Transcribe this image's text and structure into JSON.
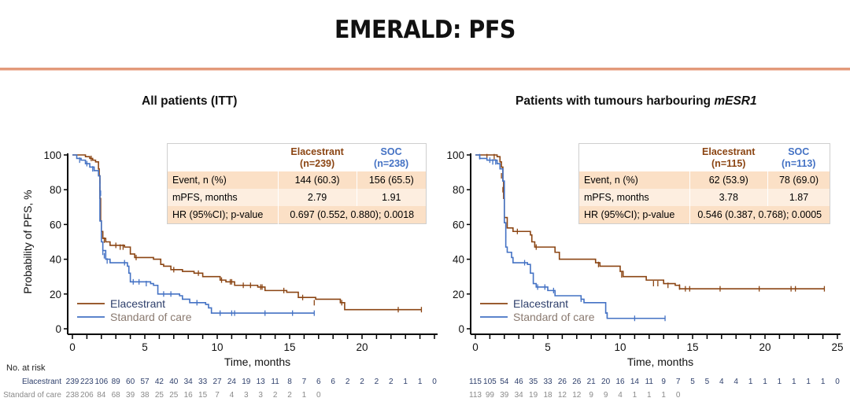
{
  "title": "EMERALD: PFS",
  "colors": {
    "elacestrant": "#8b4513",
    "soc": "#4472c4",
    "rule": "#e39a7b",
    "risk_elacestrant": "#2e3f6b",
    "risk_soc": "#8a8a8a"
  },
  "risk_table_label": "No. at risk",
  "panels": [
    {
      "title": "All patients (ITT)",
      "title_italic": "",
      "stats_table": {
        "headers": [
          {
            "name": "Elacestrant",
            "n": "(n=239)"
          },
          {
            "name": "SOC",
            "n": "(n=238)"
          }
        ],
        "rows": [
          {
            "label": "Event, n (%)",
            "elacestrant": "144 (60.3)",
            "soc": "156 (65.5)"
          },
          {
            "label": "mPFS, months",
            "elacestrant": "2.79",
            "soc": "1.91"
          },
          {
            "label": "HR (95%CI); p-value",
            "combined": "0.697 (0.552, 0.880); 0.0018"
          }
        ]
      },
      "risk": {
        "row_labels": [
          "Elacestrant",
          "Standard of care"
        ],
        "elacestrant": [
          "239",
          "223",
          "106",
          "89",
          "60",
          "57",
          "42",
          "40",
          "34",
          "33",
          "27",
          "24",
          "19",
          "13",
          "11",
          "8",
          "7",
          "6",
          "6",
          "2",
          "2",
          "2",
          "2",
          "1",
          "1",
          "0"
        ],
        "soc": [
          "238",
          "206",
          "84",
          "68",
          "39",
          "38",
          "25",
          "25",
          "16",
          "15",
          "7",
          "4",
          "3",
          "3",
          "2",
          "2",
          "1",
          "0"
        ]
      }
    },
    {
      "title": "Patients with tumours harbouring ",
      "title_italic": "mESR1",
      "stats_table": {
        "headers": [
          {
            "name": "Elacestrant",
            "n": "(n=115)"
          },
          {
            "name": "SOC",
            "n": "(n=113)"
          }
        ],
        "rows": [
          {
            "label": "Event, n (%)",
            "elacestrant": "62 (53.9)",
            "soc": "78 (69.0)"
          },
          {
            "label": "mPFS, months",
            "elacestrant": "3.78",
            "soc": "1.87"
          },
          {
            "label": "HR (95%CI); p-value",
            "combined": "0.546 (0.387, 0.768); 0.0005"
          }
        ]
      },
      "risk": {
        "row_labels": [
          "",
          ""
        ],
        "elacestrant": [
          "115",
          "105",
          "54",
          "46",
          "35",
          "33",
          "26",
          "26",
          "21",
          "20",
          "16",
          "14",
          "11",
          "9",
          "7",
          "5",
          "5",
          "4",
          "4",
          "1",
          "1",
          "1",
          "1",
          "1",
          "1",
          "0"
        ],
        "soc": [
          "113",
          "99",
          "39",
          "34",
          "19",
          "18",
          "12",
          "12",
          "9",
          "9",
          "4",
          "1",
          "1",
          "1",
          "0"
        ]
      }
    }
  ],
  "chart_data": [
    {
      "type": "line",
      "subtype": "kaplan-meier",
      "title": "All patients (ITT)",
      "xlabel": "Time, months",
      "ylabel": "Probability of PFS, %",
      "xlim": [
        0,
        25
      ],
      "ylim": [
        0,
        100
      ],
      "xticks": [
        0,
        5,
        10,
        15,
        20
      ],
      "yticks": [
        0,
        20,
        40,
        60,
        80,
        100
      ],
      "x_minor_step": 1,
      "legend": {
        "position": "bottom-left",
        "entries": [
          "Elacestrant",
          "Standard of care"
        ]
      },
      "series": [
        {
          "name": "Elacestrant",
          "color": "#8b4513",
          "steps": [
            [
              0,
              100
            ],
            [
              0.9,
              99
            ],
            [
              1.2,
              98
            ],
            [
              1.4,
              97
            ],
            [
              1.6,
              96
            ],
            [
              1.8,
              92
            ],
            [
              1.85,
              88
            ],
            [
              1.9,
              75
            ],
            [
              1.95,
              62
            ],
            [
              2.0,
              56
            ],
            [
              2.1,
              52
            ],
            [
              2.3,
              50
            ],
            [
              2.6,
              48
            ],
            [
              3.6,
              47
            ],
            [
              4.0,
              43
            ],
            [
              4.3,
              41
            ],
            [
              5.6,
              40
            ],
            [
              6.1,
              37
            ],
            [
              6.3,
              36
            ],
            [
              6.8,
              34
            ],
            [
              7.6,
              33
            ],
            [
              8.4,
              32
            ],
            [
              9.0,
              30
            ],
            [
              10.2,
              28
            ],
            [
              10.6,
              27
            ],
            [
              11.2,
              25
            ],
            [
              12.8,
              24
            ],
            [
              13.3,
              22
            ],
            [
              14.8,
              21
            ],
            [
              15.6,
              18
            ],
            [
              16.8,
              17
            ],
            [
              18.5,
              15
            ],
            [
              18.8,
              11
            ],
            [
              24.1,
              11
            ]
          ],
          "censors": [
            [
              1.3,
              98
            ],
            [
              1.9,
              85
            ],
            [
              1.9,
              80
            ],
            [
              2.2,
              51
            ],
            [
              3.0,
              48
            ],
            [
              3.3,
              47
            ],
            [
              3.5,
              47
            ],
            [
              4.4,
              41
            ],
            [
              7.0,
              34
            ],
            [
              8.7,
              32
            ],
            [
              10.3,
              28
            ],
            [
              10.9,
              27
            ],
            [
              11.0,
              27
            ],
            [
              11.8,
              25
            ],
            [
              12.3,
              25
            ],
            [
              13.0,
              24
            ],
            [
              13.1,
              24
            ],
            [
              14.6,
              22
            ],
            [
              15.9,
              18
            ],
            [
              16.7,
              15
            ],
            [
              18.6,
              15
            ],
            [
              22.5,
              11
            ],
            [
              24.1,
              11
            ]
          ]
        },
        {
          "name": "Standard of care",
          "color": "#4472c4",
          "steps": [
            [
              0,
              100
            ],
            [
              0.3,
              98
            ],
            [
              0.6,
              97
            ],
            [
              0.9,
              95
            ],
            [
              1.2,
              93
            ],
            [
              1.5,
              91
            ],
            [
              1.8,
              88
            ],
            [
              1.9,
              62
            ],
            [
              2.0,
              50
            ],
            [
              2.1,
              45
            ],
            [
              2.3,
              40
            ],
            [
              2.6,
              38
            ],
            [
              3.8,
              36
            ],
            [
              3.9,
              32
            ],
            [
              4.0,
              27
            ],
            [
              5.4,
              26
            ],
            [
              5.6,
              25
            ],
            [
              5.9,
              20
            ],
            [
              7.4,
              19
            ],
            [
              7.6,
              17
            ],
            [
              8.1,
              15
            ],
            [
              9.2,
              14
            ],
            [
              9.4,
              12
            ],
            [
              9.6,
              9
            ],
            [
              16.7,
              9
            ]
          ],
          "censors": [
            [
              0.5,
              97
            ],
            [
              1.0,
              95
            ],
            [
              1.4,
              92
            ],
            [
              1.9,
              83
            ],
            [
              1.95,
              78
            ],
            [
              2.1,
              44
            ],
            [
              2.2,
              42
            ],
            [
              2.4,
              39
            ],
            [
              3.6,
              38
            ],
            [
              4.2,
              27
            ],
            [
              4.6,
              27
            ],
            [
              5.1,
              26
            ],
            [
              6.3,
              20
            ],
            [
              6.8,
              20
            ],
            [
              8.6,
              15
            ],
            [
              10.2,
              9
            ],
            [
              11.0,
              9
            ],
            [
              11.2,
              9
            ],
            [
              13.3,
              9
            ],
            [
              15.2,
              9
            ],
            [
              16.7,
              9
            ]
          ]
        }
      ]
    },
    {
      "type": "line",
      "subtype": "kaplan-meier",
      "title": "Patients with tumours harbouring mESR1",
      "xlabel": "Time, months",
      "ylabel": "",
      "xlim": [
        0,
        25
      ],
      "ylim": [
        0,
        100
      ],
      "xticks": [
        0,
        5,
        10,
        15,
        20,
        25
      ],
      "yticks": [
        0,
        20,
        40,
        60,
        80,
        100
      ],
      "x_minor_step": 1,
      "legend": {
        "position": "bottom-left",
        "entries": [
          "Elacestrant",
          "Standard of care"
        ]
      },
      "series": [
        {
          "name": "Elacestrant",
          "color": "#8b4513",
          "steps": [
            [
              0,
              100
            ],
            [
              1.5,
              99
            ],
            [
              1.7,
              96
            ],
            [
              1.8,
              93
            ],
            [
              1.9,
              85
            ],
            [
              1.95,
              75
            ],
            [
              2.0,
              64
            ],
            [
              2.2,
              58
            ],
            [
              2.6,
              56
            ],
            [
              3.8,
              54
            ],
            [
              3.9,
              50
            ],
            [
              4.1,
              47
            ],
            [
              5.5,
              44
            ],
            [
              5.8,
              40
            ],
            [
              8.3,
              38
            ],
            [
              8.6,
              36
            ],
            [
              10.0,
              33
            ],
            [
              10.2,
              30
            ],
            [
              11.8,
              28
            ],
            [
              13.0,
              26
            ],
            [
              13.8,
              25
            ],
            [
              14.1,
              23
            ],
            [
              24.1,
              23
            ]
          ],
          "censors": [
            [
              0.8,
              99
            ],
            [
              1.3,
              99
            ],
            [
              1.8,
              88
            ],
            [
              1.9,
              80
            ],
            [
              2.0,
              70
            ],
            [
              2.9,
              56
            ],
            [
              4.2,
              47
            ],
            [
              8.5,
              37
            ],
            [
              10.1,
              31
            ],
            [
              12.3,
              26
            ],
            [
              12.6,
              26
            ],
            [
              13.3,
              25
            ],
            [
              14.1,
              24
            ],
            [
              14.5,
              23
            ],
            [
              14.8,
              23
            ],
            [
              16.9,
              23
            ],
            [
              19.6,
              23
            ],
            [
              21.8,
              23
            ],
            [
              22.1,
              23
            ],
            [
              24.1,
              23
            ]
          ]
        },
        {
          "name": "Standard of care",
          "color": "#4472c4",
          "steps": [
            [
              0,
              100
            ],
            [
              0.3,
              98
            ],
            [
              0.8,
              97
            ],
            [
              1.5,
              95
            ],
            [
              1.7,
              92
            ],
            [
              1.9,
              85
            ],
            [
              2.0,
              61
            ],
            [
              2.1,
              47
            ],
            [
              2.2,
              44
            ],
            [
              2.5,
              41
            ],
            [
              2.6,
              38
            ],
            [
              3.6,
              37
            ],
            [
              3.8,
              32
            ],
            [
              4.0,
              26
            ],
            [
              4.2,
              24
            ],
            [
              5.0,
              22
            ],
            [
              5.5,
              19
            ],
            [
              7.3,
              17
            ],
            [
              7.5,
              15
            ],
            [
              9.0,
              9
            ],
            [
              9.1,
              6
            ],
            [
              13.1,
              6
            ]
          ],
          "censors": [
            [
              0.3,
              99
            ],
            [
              1.0,
              97
            ],
            [
              1.2,
              96
            ],
            [
              1.4,
              96
            ],
            [
              1.9,
              88
            ],
            [
              2.0,
              72
            ],
            [
              2.1,
              54
            ],
            [
              3.4,
              38
            ],
            [
              4.3,
              24
            ],
            [
              4.8,
              24
            ],
            [
              5.4,
              22
            ],
            [
              7.3,
              17
            ],
            [
              9.1,
              8
            ],
            [
              11.0,
              6
            ],
            [
              13.1,
              6
            ]
          ]
        }
      ]
    }
  ]
}
